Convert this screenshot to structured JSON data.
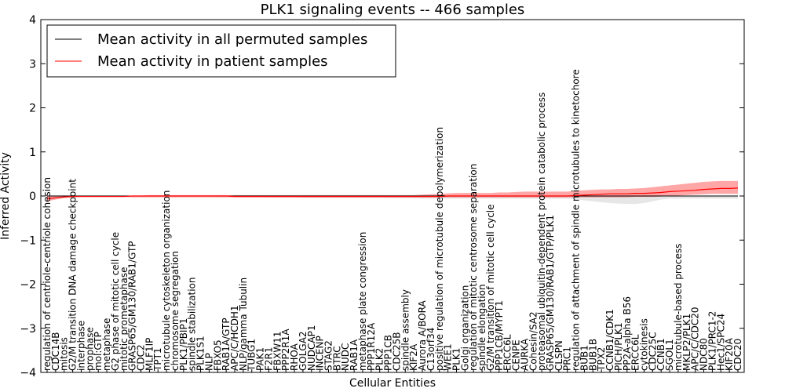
{
  "chart_data": {
    "type": "line",
    "title": "PLK1 signaling events -- 466 samples",
    "xlabel": "Cellular Entities",
    "ylabel": "Inferred Activity",
    "ylim": [
      -4,
      4
    ],
    "yticks": [
      -4,
      -3,
      -2,
      -1,
      0,
      1,
      2,
      3,
      4
    ],
    "ytick_labels": [
      "−4",
      "−3",
      "−2",
      "−1",
      "0",
      "1",
      "2",
      "3",
      "4"
    ],
    "grid": false,
    "legend_position": "top-left",
    "categories": [
      "regulation of centriole-centriole cohesion",
      "CDC14B",
      "mitosis",
      "G2/M transition DNA damage checkpoint",
      "interphase",
      "prophase",
      "mol:GTP",
      "metaphase",
      "G2 phase of mitotic cell cycle",
      "mitotic prometaphase",
      "GRASP65/GM130/RAB1/GTP",
      "CDC2",
      "MLF1IP",
      "TPT1",
      "microtubule cytoskeleton organization",
      "chromosome segregation",
      "PLK1/PBIP1",
      "spindle stabilization",
      "PLK1S1",
      "NLP",
      "FBXO5",
      "RAB1A/GTP",
      "APC/C/HCDH1",
      "NLP/gamma Tubulin",
      "TUBG1",
      "PAK1",
      "F2R1",
      "FBXW11",
      "PPP2R1A",
      "RHOA",
      "GOLGA2",
      "NUDCAP1",
      "INCENP",
      "STAG2",
      "BTRC",
      "NUDC",
      "RAB1A",
      "metaphase plate congression",
      "PPP1R12A",
      "PLK2",
      "PPP1CB",
      "CDC25B",
      "spindle assembly",
      "KIF2A",
      "Aurora A/BORA",
      "C13orf34",
      "positive regulation of microtubule depolymerization",
      "WEE1",
      "PLK1",
      "Golgi organization",
      "regulation of mitotic centrosome separation",
      "spindle elongation",
      "G2/M transition of mitotic cell cycle",
      "PPP1CB/MYPT1",
      "ERCC6L",
      "CENPE",
      "AURKA",
      "Cohesin/SA2",
      "proteasomal ubiquitin-dependent protein catabolic process",
      "GRASP65/GM130/RAB1/GTP/PLK1",
      "CLSPN",
      "PRC1",
      "regulation of attachment of spindle microtubules to kinetochore",
      "BUB1",
      "BUB1B",
      "TPX2",
      "CCNB1/CDK1",
      "PICH/PLK1",
      "PP2A-alpha B56",
      "ERCC6L",
      "cytokinesis",
      "CDC25C",
      "CCNB1",
      "SGOL1",
      "microtubule-based process",
      "MKLP2/PLK1",
      "APC/C/CDC20",
      "NDC80",
      "PLK1/PRC1-2",
      "Hec1/SPC24",
      "KIF20A",
      "CDC20"
    ],
    "series": [
      {
        "name": "Mean activity in all permuted samples",
        "color": "#000000",
        "values": [
          0,
          0,
          0,
          0,
          0,
          0,
          0,
          0,
          0,
          0,
          0,
          0,
          0,
          0,
          0,
          0,
          0,
          0,
          0,
          0,
          0,
          0,
          0,
          0,
          0,
          0,
          0,
          0,
          0,
          0,
          0,
          0,
          0,
          0,
          0,
          0,
          0,
          0,
          0,
          0,
          0,
          0,
          0,
          0,
          0,
          0,
          0,
          0,
          0,
          0,
          0,
          0,
          0,
          0,
          0,
          0,
          0,
          0,
          0,
          0,
          0,
          0,
          0,
          0,
          0,
          0,
          0,
          0,
          0,
          0,
          0,
          0,
          0,
          0,
          0,
          0,
          0,
          0,
          0,
          0,
          0,
          0
        ],
        "band_upper": [
          0.01,
          0.01,
          0.01,
          0.01,
          0.01,
          0.01,
          0.01,
          0.01,
          0.01,
          0.01,
          0.01,
          0.01,
          0.01,
          0.01,
          0.01,
          0.01,
          0.01,
          0.01,
          0.01,
          0.01,
          0.01,
          0.01,
          0.01,
          0.01,
          0.01,
          0.01,
          0.01,
          0.01,
          0.01,
          0.01,
          0.01,
          0.01,
          0.01,
          0.01,
          0.01,
          0.01,
          0.01,
          0.01,
          0.01,
          0.01,
          0.01,
          0.01,
          0.01,
          0.01,
          0.01,
          0.01,
          0.01,
          0.01,
          0.01,
          0.01,
          0.01,
          0.01,
          0.01,
          0.01,
          0.01,
          0.01,
          0.01,
          0.01,
          0.01,
          0.01,
          0.01,
          0.01,
          0.01,
          0.01,
          0.01,
          0.01,
          0.01,
          0.01,
          0.01,
          0.01,
          0.01,
          0.01,
          0.01,
          0.01,
          0.01,
          0.01,
          0.01,
          0.01,
          0.01,
          0.01,
          0.01,
          0.01
        ],
        "band_lower": [
          -0.01,
          -0.01,
          -0.01,
          -0.01,
          -0.01,
          -0.01,
          -0.01,
          -0.01,
          -0.01,
          -0.01,
          -0.01,
          -0.01,
          -0.01,
          -0.01,
          -0.01,
          -0.01,
          -0.01,
          -0.01,
          -0.01,
          -0.01,
          -0.02,
          -0.02,
          -0.02,
          -0.02,
          -0.02,
          -0.02,
          -0.03,
          -0.03,
          -0.03,
          -0.03,
          -0.04,
          -0.04,
          -0.04,
          -0.04,
          -0.04,
          -0.04,
          -0.04,
          -0.04,
          -0.04,
          -0.04,
          -0.05,
          -0.05,
          -0.05,
          -0.05,
          -0.06,
          -0.06,
          -0.06,
          -0.06,
          -0.06,
          -0.06,
          -0.06,
          -0.06,
          -0.06,
          -0.06,
          -0.06,
          -0.06,
          -0.06,
          -0.06,
          -0.06,
          -0.06,
          -0.06,
          -0.06,
          -0.08,
          -0.1,
          -0.12,
          -0.14,
          -0.16,
          -0.17,
          -0.18,
          -0.18,
          -0.16,
          -0.12,
          -0.08,
          -0.06,
          -0.06,
          -0.06,
          -0.06,
          -0.06,
          -0.06,
          -0.06,
          -0.06,
          -0.06
        ]
      },
      {
        "name": "Mean activity in patient samples",
        "color": "#ff0000",
        "values": [
          -0.06,
          -0.04,
          -0.02,
          -0.01,
          -0.01,
          -0.01,
          -0.01,
          -0.01,
          -0.01,
          -0.01,
          0,
          0,
          0,
          0,
          0,
          0,
          0,
          0,
          0,
          0,
          0,
          0,
          -0.01,
          -0.01,
          -0.01,
          -0.01,
          -0.01,
          -0.01,
          -0.01,
          -0.01,
          -0.01,
          -0.01,
          -0.01,
          -0.01,
          -0.01,
          -0.01,
          -0.01,
          -0.01,
          -0.01,
          -0.01,
          -0.01,
          -0.01,
          -0.01,
          -0.01,
          -0.01,
          -0.01,
          -0.01,
          0,
          0,
          0,
          0,
          0,
          0,
          0,
          0,
          0,
          0,
          0,
          0,
          0,
          0,
          0,
          0.01,
          0.02,
          0.03,
          0.04,
          0.05,
          0.05,
          0.05,
          0.06,
          0.06,
          0.07,
          0.08,
          0.1,
          0.11,
          0.12,
          0.13,
          0.15,
          0.16,
          0.17,
          0.17,
          0.18
        ],
        "band_upper": [
          0.01,
          0.01,
          0.01,
          0.01,
          0.01,
          0.01,
          0.01,
          0.01,
          0.01,
          0.01,
          0.01,
          0.01,
          0.02,
          0.02,
          0.02,
          0.02,
          0.02,
          0.02,
          0.02,
          0.02,
          0.02,
          0.02,
          0.02,
          0.02,
          0.02,
          0.02,
          0.02,
          0.02,
          0.02,
          0.02,
          0.02,
          0.02,
          0.02,
          0.02,
          0.02,
          0.02,
          0.02,
          0.02,
          0.02,
          0.02,
          0.02,
          0.02,
          0.02,
          0.02,
          0.03,
          0.04,
          0.05,
          0.06,
          0.07,
          0.07,
          0.07,
          0.07,
          0.07,
          0.08,
          0.08,
          0.09,
          0.1,
          0.1,
          0.1,
          0.1,
          0.1,
          0.1,
          0.12,
          0.13,
          0.14,
          0.15,
          0.15,
          0.16,
          0.16,
          0.17,
          0.18,
          0.2,
          0.22,
          0.24,
          0.26,
          0.28,
          0.3,
          0.32,
          0.33,
          0.34,
          0.34,
          0.34
        ],
        "band_lower": [
          -0.12,
          -0.08,
          -0.05,
          -0.03,
          -0.02,
          -0.02,
          -0.02,
          -0.02,
          -0.02,
          -0.02,
          -0.03,
          -0.03,
          -0.03,
          -0.03,
          -0.03,
          -0.03,
          -0.03,
          -0.03,
          -0.03,
          -0.03,
          -0.03,
          -0.03,
          -0.03,
          -0.03,
          -0.03,
          -0.03,
          -0.03,
          -0.03,
          -0.03,
          -0.03,
          -0.03,
          -0.03,
          -0.03,
          -0.03,
          -0.03,
          -0.03,
          -0.03,
          -0.03,
          -0.03,
          -0.03,
          -0.03,
          -0.03,
          -0.03,
          -0.03,
          -0.03,
          -0.03,
          -0.03,
          -0.03,
          -0.03,
          -0.03,
          -0.03,
          -0.03,
          -0.03,
          -0.03,
          -0.03,
          -0.03,
          -0.03,
          -0.03,
          -0.03,
          -0.03,
          -0.03,
          -0.03,
          -0.03,
          -0.03,
          -0.03,
          -0.03,
          -0.03,
          -0.03,
          -0.03,
          -0.02,
          -0.02,
          -0.02,
          -0.01,
          0,
          0.01,
          0.02,
          0.03,
          0.04,
          0.05,
          0.05,
          0.05,
          0.05
        ]
      }
    ]
  }
}
